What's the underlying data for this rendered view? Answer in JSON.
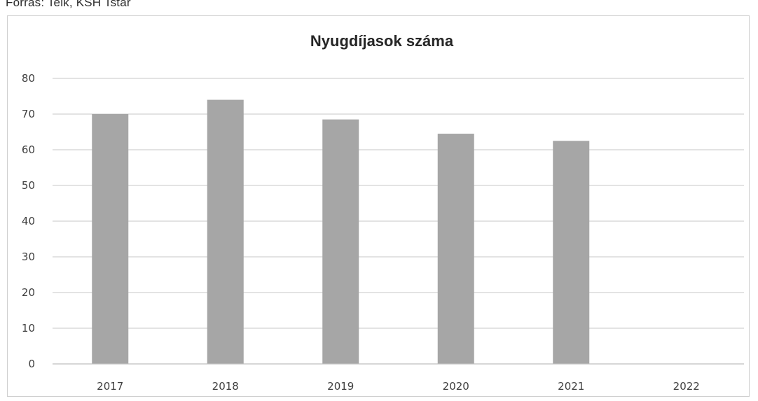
{
  "source_note": "Forrás: Telk, KSH Tstar",
  "chart_data": {
    "type": "bar",
    "title": "Nyugdíjasok száma",
    "xlabel": "",
    "ylabel": "",
    "categories": [
      "2017",
      "2018",
      "2019",
      "2020",
      "2021",
      "2022"
    ],
    "values": [
      70,
      74,
      68.5,
      64.5,
      62.5,
      null
    ],
    "ylim": [
      0,
      80
    ],
    "yticks": [
      "0",
      "10",
      "20",
      "30",
      "40",
      "50",
      "60",
      "70",
      "80"
    ],
    "grid": true,
    "legend": "none",
    "bar_color": "#a6a6a6"
  }
}
